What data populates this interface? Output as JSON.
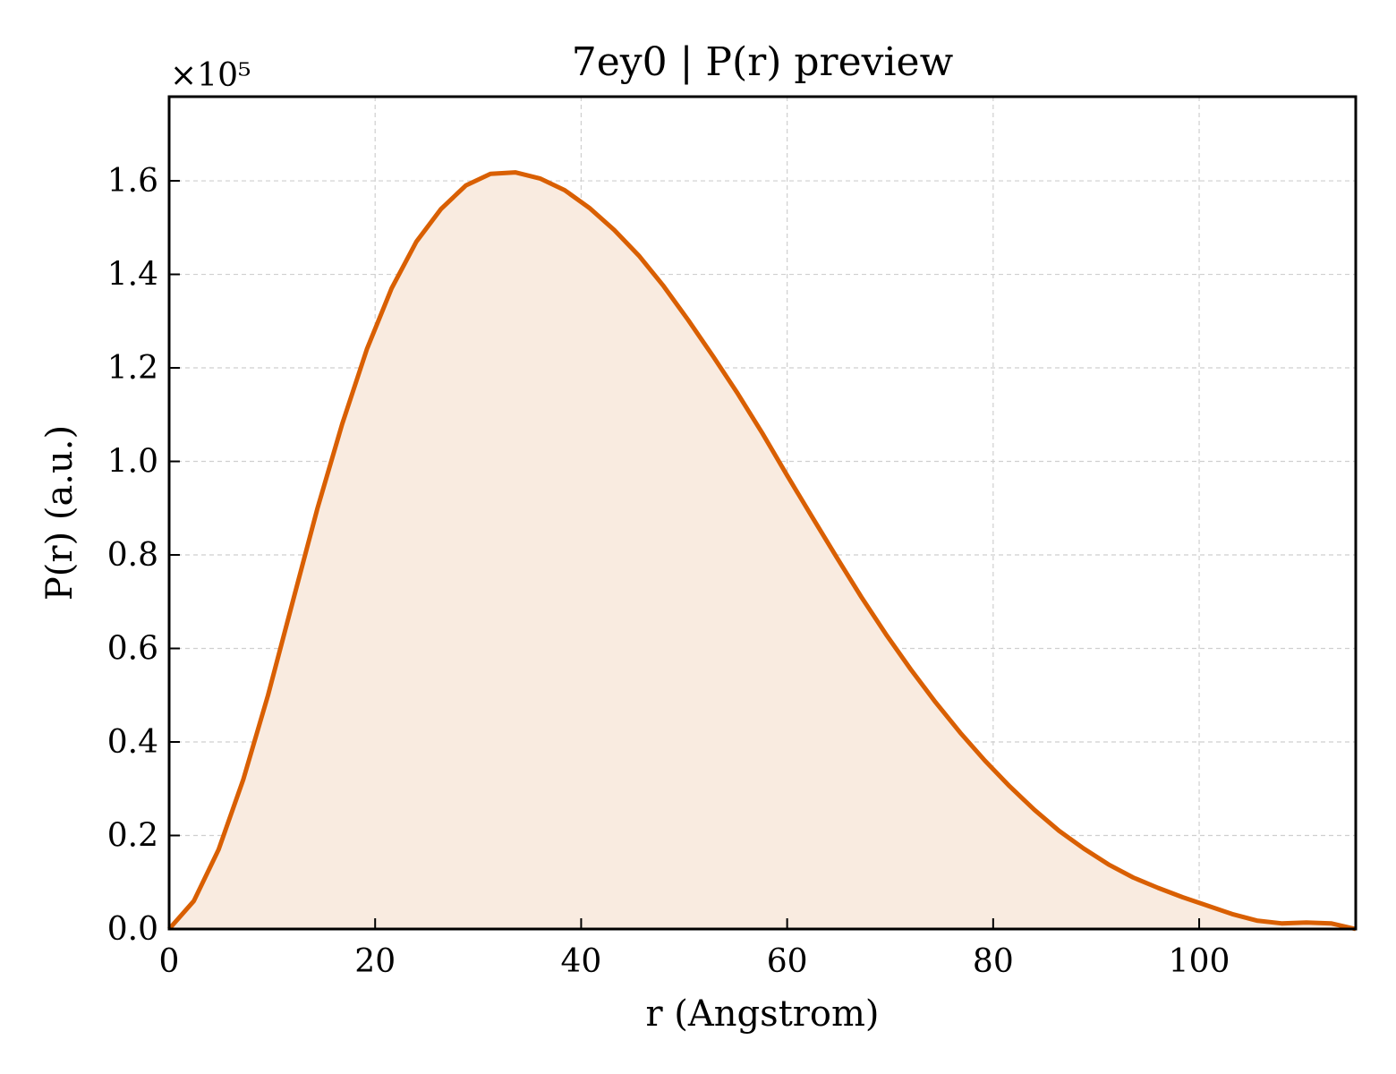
{
  "chart_data": {
    "type": "area",
    "title": "7ey0 | P(r) preview",
    "xlabel": "r (Angstrom)",
    "ylabel": "P(r) (a.u.)",
    "y_multiplier": "×10⁵",
    "xlim": [
      0,
      115.2
    ],
    "ylim": [
      0,
      1.78
    ],
    "xticks": [
      0,
      20,
      40,
      60,
      80,
      100
    ],
    "yticks": [
      0.0,
      0.2,
      0.4,
      0.6,
      0.8,
      1.0,
      1.2,
      1.4,
      1.6
    ],
    "grid": true,
    "line_color": "#d95f02",
    "fill_color": "#f9ebe0",
    "series": [
      {
        "x": [
          0,
          2.4,
          4.8,
          7.2,
          9.6,
          12.0,
          14.4,
          16.8,
          19.2,
          21.6,
          24.0,
          26.4,
          28.8,
          31.2,
          33.6,
          36.0,
          38.4,
          40.8,
          43.2,
          45.6,
          48.0,
          50.4,
          52.8,
          55.2,
          57.6,
          60.0,
          62.4,
          64.8,
          67.2,
          69.6,
          72.0,
          74.4,
          76.8,
          79.2,
          81.6,
          84.0,
          86.4,
          88.8,
          91.2,
          93.6,
          96.0,
          98.4,
          100.8,
          103.2,
          105.6,
          108.0,
          110.4,
          112.8,
          115.2
        ],
        "values": [
          0.0,
          0.06,
          0.17,
          0.32,
          0.5,
          0.7,
          0.9,
          1.08,
          1.24,
          1.37,
          1.47,
          1.54,
          1.59,
          1.615,
          1.618,
          1.605,
          1.58,
          1.542,
          1.495,
          1.44,
          1.375,
          1.302,
          1.225,
          1.145,
          1.06,
          0.97,
          0.882,
          0.795,
          0.71,
          0.63,
          0.555,
          0.485,
          0.42,
          0.36,
          0.305,
          0.255,
          0.21,
          0.172,
          0.138,
          0.11,
          0.088,
          0.068,
          0.05,
          0.032,
          0.018,
          0.012,
          0.014,
          0.012,
          0.0
        ]
      }
    ]
  }
}
